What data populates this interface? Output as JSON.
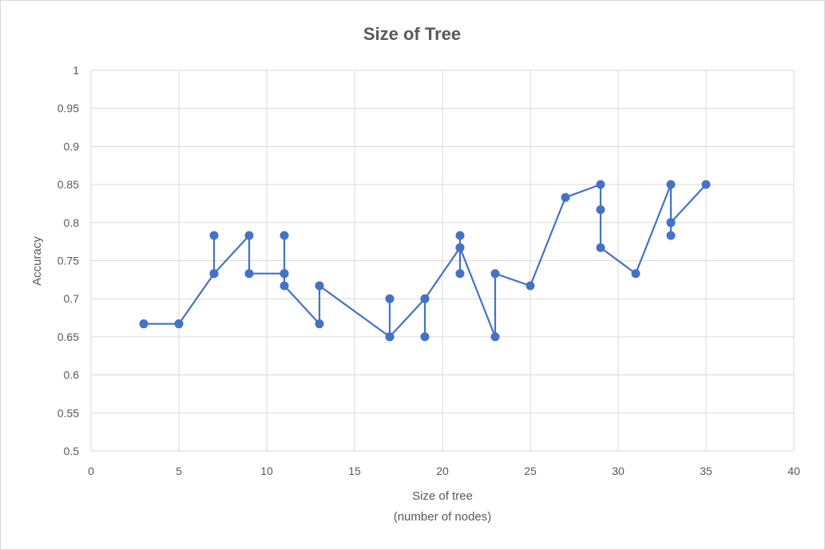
{
  "chart_data": {
    "type": "scatter",
    "title": "Size of Tree",
    "xlabel_lines": [
      "Size of tree",
      "(number of nodes)"
    ],
    "ylabel": "Accuracy",
    "xlim": [
      0,
      40
    ],
    "ylim": [
      0.5,
      1
    ],
    "x_ticks": [
      0,
      5,
      10,
      15,
      20,
      25,
      30,
      35,
      40
    ],
    "x_tick_labels": [
      "0",
      "5",
      "10",
      "15",
      "20",
      "25",
      "30",
      "35",
      "40"
    ],
    "y_ticks": [
      0.5,
      0.55,
      0.6,
      0.65,
      0.7,
      0.75,
      0.8,
      0.85,
      0.9,
      0.95,
      1
    ],
    "y_tick_labels": [
      "0.5",
      "0.55",
      "0.6",
      "0.65",
      "0.7",
      "0.75",
      "0.8",
      "0.85",
      "0.9",
      "0.95",
      "1"
    ],
    "grid": true,
    "legend": "none",
    "series": [
      {
        "color": "#4472c4",
        "x": [
          3,
          3,
          5,
          5,
          7,
          7,
          7,
          9,
          9,
          11,
          11,
          11,
          11,
          13,
          13,
          13,
          17,
          17,
          17,
          19,
          19,
          19,
          21,
          21,
          21,
          21,
          23,
          23,
          25,
          27,
          29,
          29,
          29,
          31,
          33,
          33,
          33,
          33,
          35
        ],
        "y": [
          0.667,
          0.667,
          0.667,
          0.667,
          0.733,
          0.783,
          0.733,
          0.783,
          0.733,
          0.733,
          0.783,
          0.733,
          0.717,
          0.667,
          0.717,
          0.717,
          0.65,
          0.7,
          0.65,
          0.7,
          0.65,
          0.7,
          0.767,
          0.733,
          0.783,
          0.767,
          0.65,
          0.733,
          0.717,
          0.833,
          0.85,
          0.817,
          0.767,
          0.733,
          0.85,
          0.8,
          0.783,
          0.8,
          0.85
        ]
      }
    ]
  }
}
